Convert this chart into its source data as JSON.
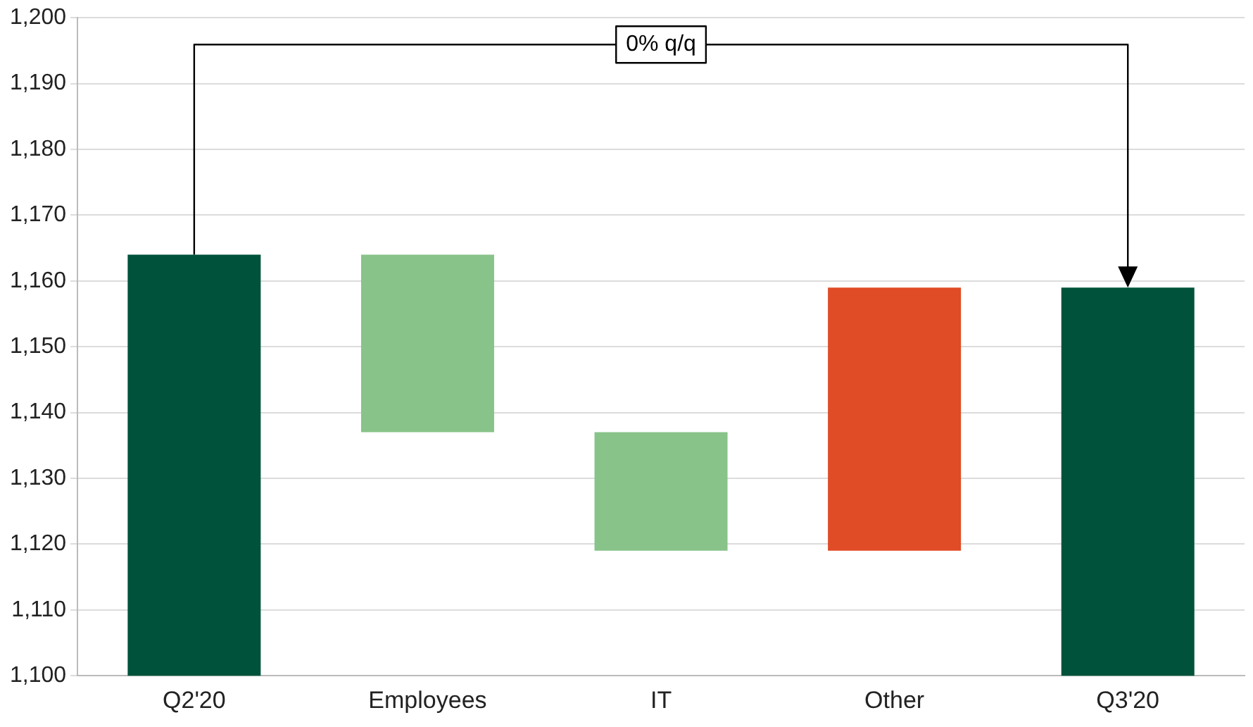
{
  "chart_data": {
    "type": "bar",
    "categories": [
      "Q2'20",
      "Employees",
      "IT",
      "Other",
      "Q3'20"
    ],
    "values": [
      1164,
      -27,
      -18,
      40,
      1159
    ],
    "base": [
      null,
      1164,
      1137,
      1119,
      null
    ],
    "colors": [
      "#00533a",
      "#88c389",
      "#88c389",
      "#e04c26",
      "#00533a"
    ],
    "ylim": [
      1100,
      1200
    ],
    "yticks": [
      {
        "value": 1100,
        "label": "1,100"
      },
      {
        "value": 1110,
        "label": "1,110"
      },
      {
        "value": 1120,
        "label": "1,120"
      },
      {
        "value": 1130,
        "label": "1,130"
      },
      {
        "value": 1140,
        "label": "1,140"
      },
      {
        "value": 1150,
        "label": "1,150"
      },
      {
        "value": 1160,
        "label": "1,160"
      },
      {
        "value": 1170,
        "label": "1,170"
      },
      {
        "value": 1180,
        "label": "1,180"
      },
      {
        "value": 1190,
        "label": "1,190"
      },
      {
        "value": 1200,
        "label": "1,200"
      }
    ],
    "grid": "y",
    "annotations": [
      "0% q/q"
    ]
  }
}
